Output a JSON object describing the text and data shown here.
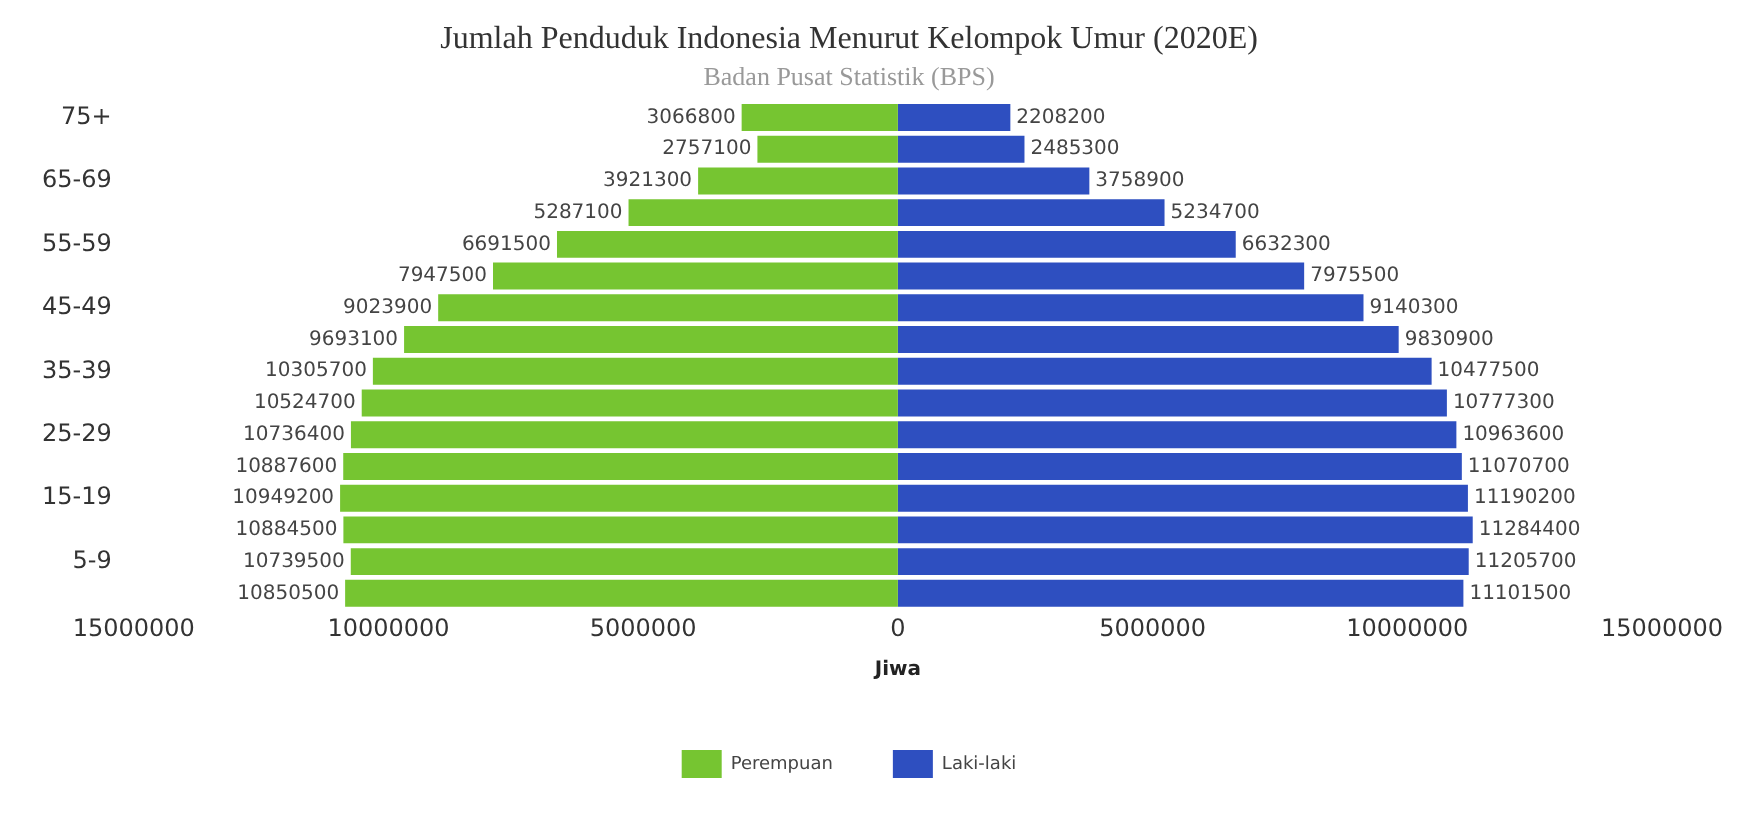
{
  "chart_data": {
    "type": "bar",
    "orientation": "horizontal",
    "title": "Jumlah Penduduk Indonesia Menurut Kelompok Umur (2020E)",
    "subtitle": "Badan Pusat Statistik (BPS)",
    "xlabel": "Jiwa",
    "categories": [
      "75+",
      null,
      "65-69",
      null,
      "55-59",
      null,
      "45-49",
      null,
      "35-39",
      null,
      "25-29",
      null,
      "15-19",
      null,
      "5-9",
      null
    ],
    "series": [
      {
        "name": "Perempuan",
        "color": "#76c531",
        "values": [
          3066800,
          2757100,
          3921300,
          5287100,
          6691500,
          7947500,
          9023900,
          9693100,
          10305700,
          10524700,
          10736400,
          10887600,
          10949200,
          10884500,
          10739500,
          10850500
        ],
        "base": [
          -3066800,
          -2757100,
          -3921300,
          -5287100,
          -6691500,
          -7947500,
          -9023900,
          -9693100,
          -10305700,
          -10524700,
          -10736400,
          -10887600,
          -10949200,
          -10884500,
          -10739500,
          -10850500
        ]
      },
      {
        "name": "Laki-laki",
        "color": "#2e4fc0",
        "values": [
          2208200,
          2485300,
          3758900,
          5234700,
          6632300,
          7975500,
          9140300,
          9830900,
          10477500,
          10777300,
          10963600,
          11070700,
          11190200,
          11284400,
          11205700,
          11101500
        ]
      }
    ],
    "xlim": [
      -15000000,
      15000000
    ],
    "xticks": [
      {
        "value": -15000000,
        "label": "15000000"
      },
      {
        "value": -10000000,
        "label": "10000000"
      },
      {
        "value": -5000000,
        "label": "5000000"
      },
      0,
      5000000,
      10000000,
      15000000
    ],
    "data_labels": true,
    "grid": false,
    "legend": "bottom"
  }
}
